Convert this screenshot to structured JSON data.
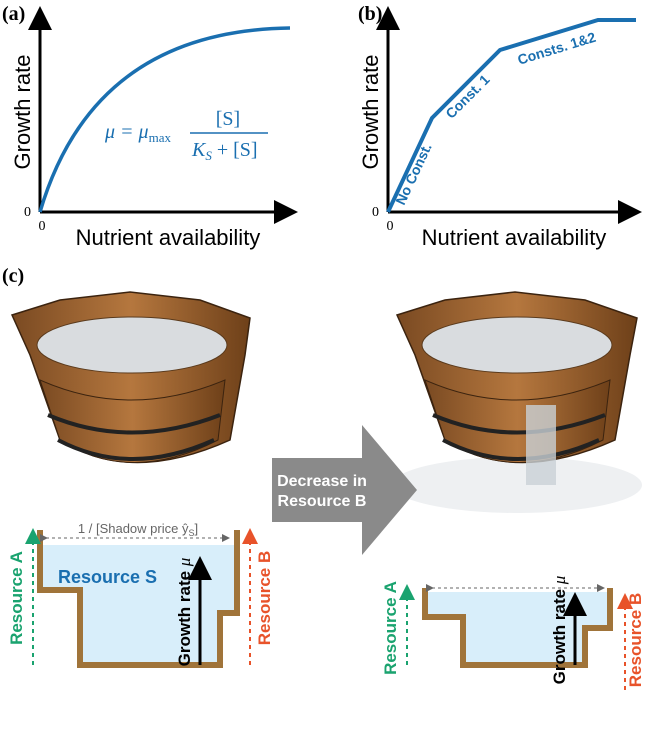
{
  "panel_a": {
    "label": "(a)",
    "y_axis": "Growth rate",
    "x_axis": "Nutrient availability",
    "origin_y": "0",
    "origin_x": "0",
    "formula": {
      "lhs": "μ = μ",
      "sub_max": "max",
      "numerator": "[S]",
      "den_k": "K",
      "den_sub": "S",
      "den_rest": " + [S]"
    }
  },
  "panel_b": {
    "label": "(b)",
    "y_axis": "Growth rate",
    "x_axis": "Nutrient availability",
    "origin_y": "0",
    "origin_x": "0",
    "segments": [
      "No Const.",
      "Const. 1",
      "Consts. 1&2"
    ]
  },
  "panel_c": {
    "label": "(c)",
    "arrow": [
      "Decrease in",
      "Resource B"
    ],
    "left": {
      "shadow_price": "1 / [Shadow price ŷ",
      "shadow_sub": "S",
      "shadow_close": "]",
      "resource_s": "Resource S",
      "growth": "Growth rate ",
      "mu": "μ",
      "resource_a": "Resource A",
      "resource_b": "Resource B"
    },
    "right": {
      "growth": "Growth rate ",
      "mu": "μ",
      "resource_a": "Resource A",
      "resource_b": "Resource B"
    }
  }
}
